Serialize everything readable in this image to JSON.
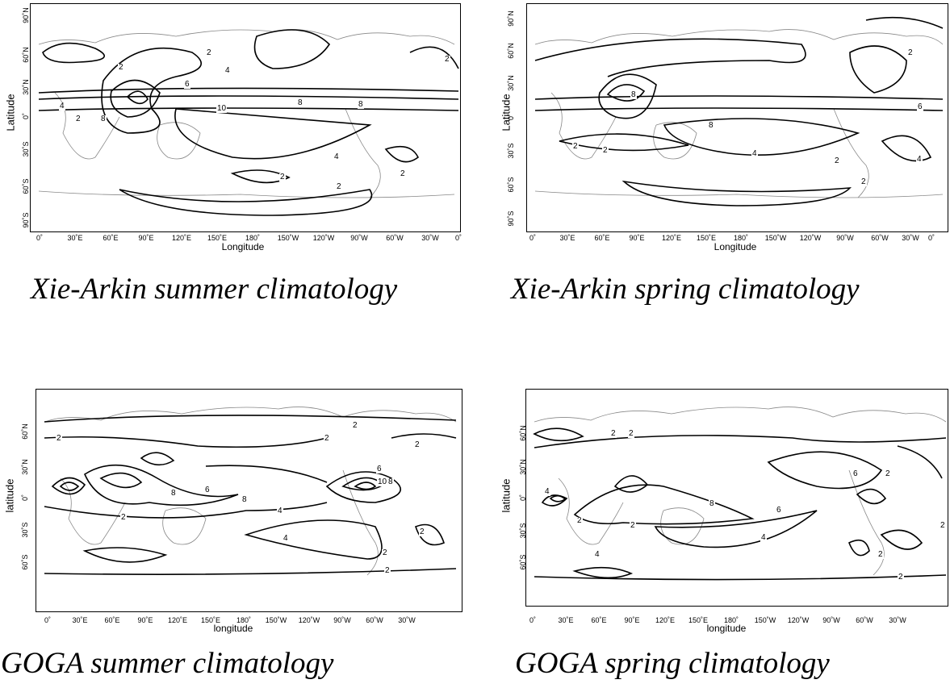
{
  "panels": [
    {
      "id": "xa-summer",
      "caption": "Xie-Arkin summer climatology",
      "x_axis_title": "Longitude",
      "y_axis_title": "Latitude",
      "x_ticks": [
        "0˚",
        "30˚E",
        "60˚E",
        "90˚E",
        "120˚E",
        "150˚E",
        "180˚",
        "150˚W",
        "120˚W",
        "90˚W",
        "60˚W",
        "30˚W",
        "0˚"
      ],
      "y_ticks": [
        "90˚N",
        "60˚N",
        "30˚N",
        "0˚",
        "30˚S",
        "60˚S",
        "90˚S"
      ],
      "contour_labels": [
        "2",
        "2",
        "2",
        "4",
        "4",
        "2",
        "6",
        "8",
        "8",
        "10",
        "8",
        "4",
        "2",
        "2",
        "2"
      ]
    },
    {
      "id": "xa-spring",
      "caption": "Xie-Arkin spring climatology",
      "x_axis_title": "Longitude",
      "y_axis_title": "Latitude",
      "x_ticks": [
        "0˚",
        "30˚E",
        "60˚E",
        "90˚E",
        "120˚E",
        "150˚E",
        "180˚",
        "150˚W",
        "120˚W",
        "90˚W",
        "60˚W",
        "30˚W",
        "0˚"
      ],
      "y_ticks": [
        "90˚N",
        "60˚N",
        "30˚N",
        "0˚",
        "30˚S",
        "60˚S",
        "90˚S"
      ],
      "contour_labels": [
        "2",
        "2",
        "8",
        "8",
        "6",
        "2",
        "2",
        "4",
        "4",
        "2"
      ]
    },
    {
      "id": "goga-summer",
      "caption": "GOGA summer climatology",
      "x_axis_title": "longitude",
      "y_axis_title": "latitude",
      "x_ticks": [
        "0˚",
        "30˚E",
        "60˚E",
        "90˚E",
        "120˚E",
        "150˚E",
        "180˚",
        "150˚W",
        "120˚W",
        "90˚W",
        "60˚W",
        "30˚W"
      ],
      "y_ticks": [
        "60˚N",
        "30˚N",
        "0˚",
        "30˚S",
        "60˚S"
      ],
      "contour_labels": [
        "2",
        "2",
        "2",
        "2",
        "6",
        "6",
        "10",
        "8",
        "8",
        "8",
        "4",
        "4",
        "2",
        "2",
        "2",
        "2"
      ]
    },
    {
      "id": "goga-spring",
      "caption": "GOGA spring climatology",
      "x_axis_title": "longitude",
      "y_axis_title": "latitude",
      "x_ticks": [
        "0˚",
        "30˚E",
        "60˚E",
        "90˚E",
        "120˚E",
        "150˚E",
        "180˚",
        "150˚W",
        "120˚W",
        "90˚W",
        "60˚W",
        "30˚W"
      ],
      "y_ticks": [
        "60˚N",
        "30˚N",
        "0˚",
        "30˚S",
        "60˚S"
      ],
      "contour_labels": [
        "2",
        "2",
        "4",
        "6",
        "2",
        "2",
        "8",
        "6",
        "4",
        "4",
        "2",
        "2",
        "2",
        "2"
      ]
    }
  ]
}
